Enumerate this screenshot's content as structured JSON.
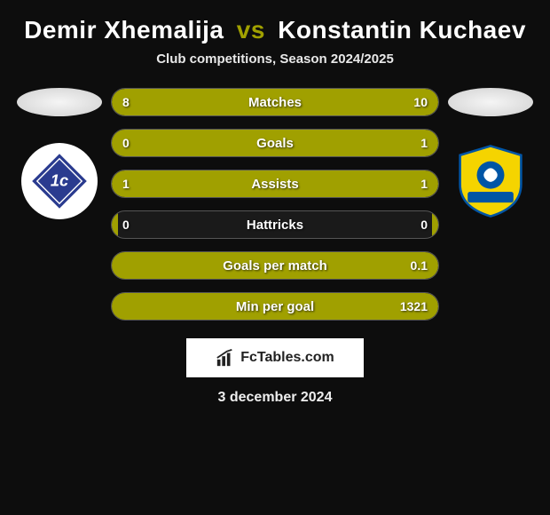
{
  "title": {
    "player1": "Demir Xhemalija",
    "vs": "vs",
    "player2": "Konstantin Kuchaev"
  },
  "subtitle": "Club competitions, Season 2024/2025",
  "stats": [
    {
      "label": "Matches",
      "left_val": "8",
      "right_val": "10",
      "left_pct": 44,
      "right_pct": 56
    },
    {
      "label": "Goals",
      "left_val": "0",
      "right_val": "1",
      "left_pct": 2,
      "right_pct": 98
    },
    {
      "label": "Assists",
      "left_val": "1",
      "right_val": "1",
      "left_pct": 50,
      "right_pct": 50
    },
    {
      "label": "Hattricks",
      "left_val": "0",
      "right_val": "0",
      "left_pct": 2,
      "right_pct": 2
    },
    {
      "label": "Goals per match",
      "left_val": "",
      "right_val": "0.1",
      "left_pct": 2,
      "right_pct": 98
    },
    {
      "label": "Min per goal",
      "left_val": "",
      "right_val": "1321",
      "left_pct": 2,
      "right_pct": 98
    }
  ],
  "colors": {
    "bar": "#a0a000",
    "background": "#0d0d0d",
    "border": "#555"
  },
  "footer": {
    "brand": "FcTables.com",
    "date": "3 december 2024"
  },
  "badges": {
    "left": {
      "bg": "#ffffff",
      "primary": "#2a3b8f",
      "shape": "diamond"
    },
    "right": {
      "shield": "#f5d400",
      "accent": "#0055a5"
    }
  }
}
